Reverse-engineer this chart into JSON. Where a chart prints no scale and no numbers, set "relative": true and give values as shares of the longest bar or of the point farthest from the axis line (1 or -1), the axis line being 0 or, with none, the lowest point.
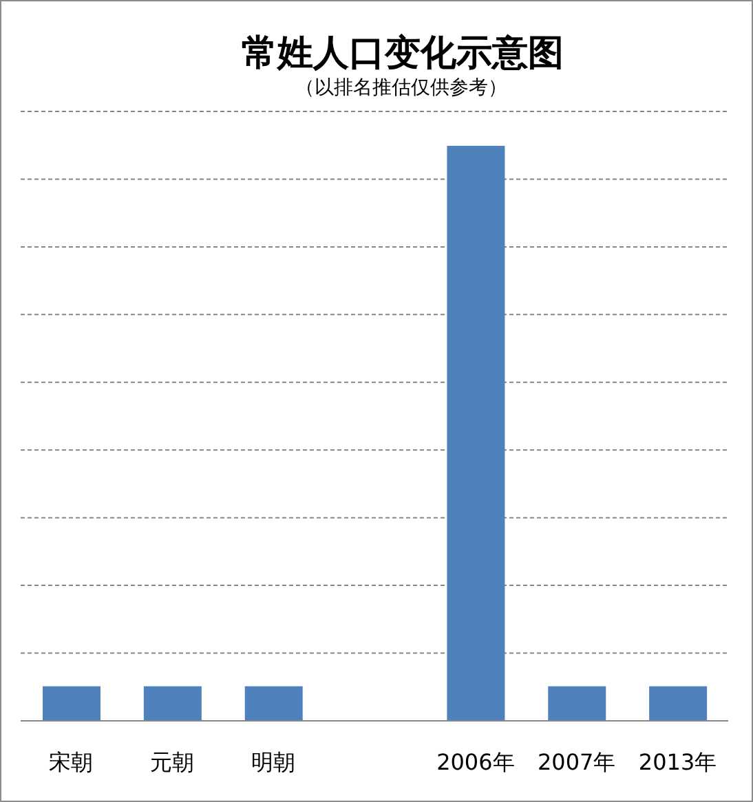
{
  "chart_data": {
    "type": "bar",
    "title": "常姓人口变化示意图",
    "subtitle": "（以排名推估仅供参考）",
    "categories": [
      "宋朝",
      "元朝",
      "明朝",
      null,
      "2006年",
      "2007年",
      "2013年"
    ],
    "values": [
      0.06,
      0.06,
      0.06,
      null,
      1,
      0.06,
      0.06
    ],
    "color": "#4f81bd",
    "relative": true,
    "grid": "y"
  }
}
